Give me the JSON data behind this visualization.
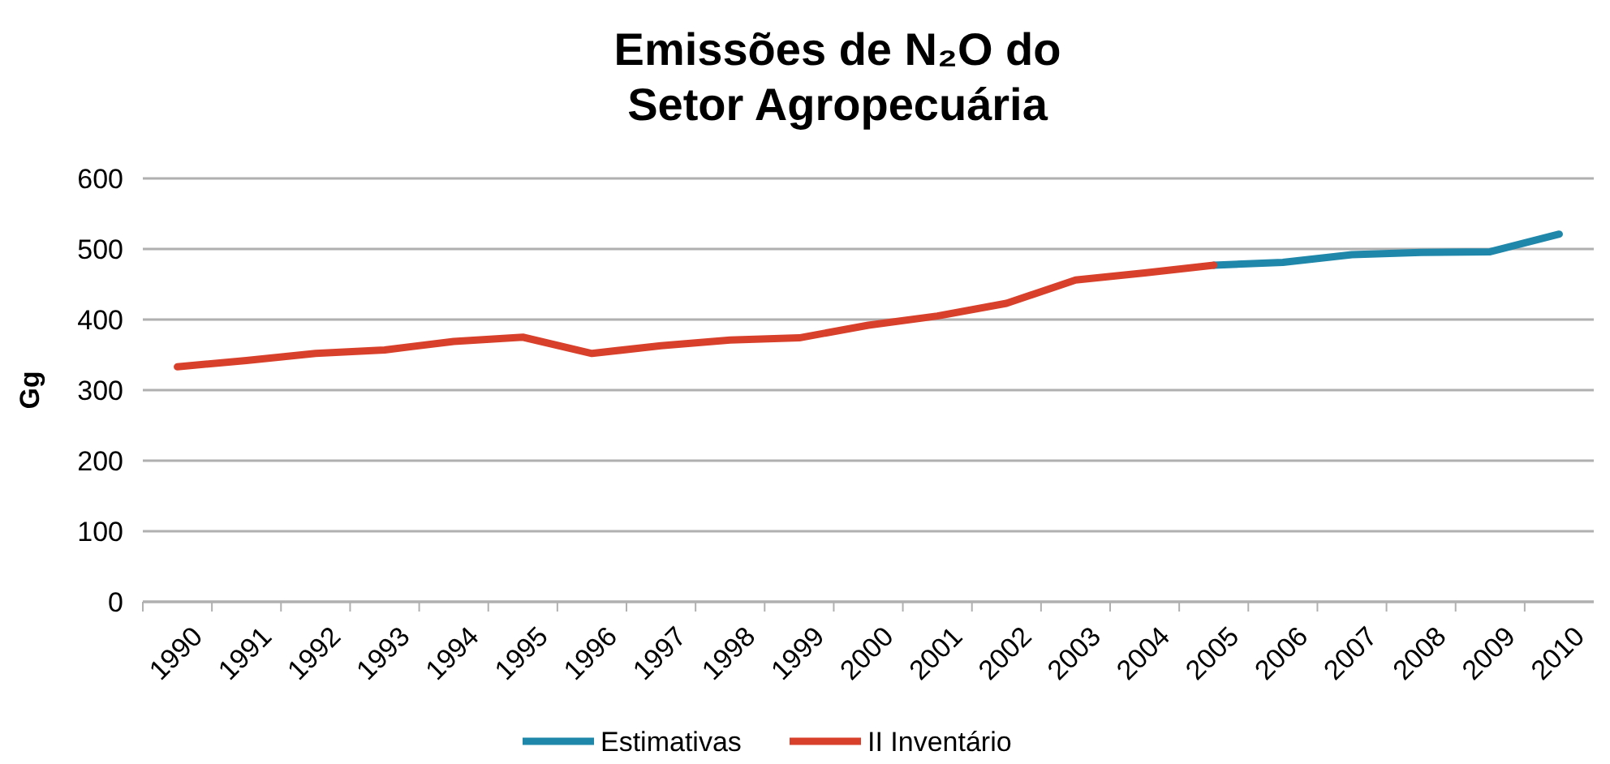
{
  "chart_data": {
    "type": "line",
    "title": "Emissões de N₂O do\nSetor Agropecuária",
    "ylabel": "Gg",
    "categories": [
      "1990",
      "1991",
      "1992",
      "1993",
      "1994",
      "1995",
      "1996",
      "1997",
      "1998",
      "1999",
      "2000",
      "2001",
      "2002",
      "2003",
      "2004",
      "2005",
      "2006",
      "2007",
      "2008",
      "2009",
      "2010"
    ],
    "series": [
      {
        "name": "Estimativas",
        "color": "#1f87aa",
        "values": [
          null,
          null,
          null,
          null,
          null,
          null,
          null,
          null,
          null,
          null,
          null,
          null,
          null,
          null,
          null,
          477,
          481,
          492,
          495,
          496,
          521
        ]
      },
      {
        "name": "II Inventário",
        "color": "#d9402c",
        "values": [
          333,
          342,
          352,
          357,
          369,
          375,
          352,
          363,
          371,
          374,
          392,
          405,
          423,
          456,
          466,
          477,
          null,
          null,
          null,
          null,
          null
        ]
      }
    ],
    "ylim": [
      0,
      600
    ],
    "yticks": [
      0,
      100,
      200,
      300,
      400,
      500,
      600
    ],
    "grid": "y",
    "legend": "bottom",
    "marker": "none",
    "line_style": "solid"
  }
}
